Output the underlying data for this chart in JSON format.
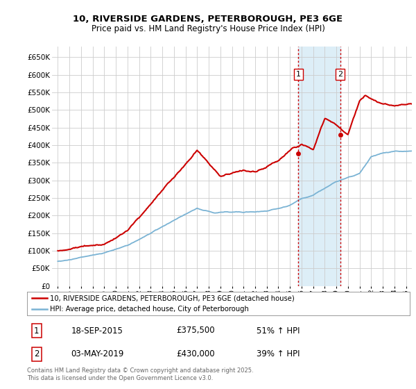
{
  "title_line1": "10, RIVERSIDE GARDENS, PETERBOROUGH, PE3 6GE",
  "title_line2": "Price paid vs. HM Land Registry's House Price Index (HPI)",
  "legend_label1": "10, RIVERSIDE GARDENS, PETERBOROUGH, PE3 6GE (detached house)",
  "legend_label2": "HPI: Average price, detached house, City of Peterborough",
  "transaction1_date": "18-SEP-2015",
  "transaction1_price": "£375,500",
  "transaction1_hpi": "51% ↑ HPI",
  "transaction2_date": "03-MAY-2019",
  "transaction2_price": "£430,000",
  "transaction2_hpi": "39% ↑ HPI",
  "footnote": "Contains HM Land Registry data © Crown copyright and database right 2025.\nThis data is licensed under the Open Government Licence v3.0.",
  "vline1_x": 2015.72,
  "vline2_x": 2019.33,
  "marker1_x": 2015.72,
  "marker1_y": 375500,
  "marker2_x": 2019.33,
  "marker2_y": 430000,
  "hpi_color": "#7ab3d4",
  "price_color": "#cc0000",
  "vline_color": "#cc0000",
  "span_color": "#ddeef7",
  "background_color": "#ffffff",
  "grid_color": "#cccccc",
  "ylim": [
    0,
    680000
  ],
  "xlim": [
    1994.5,
    2025.5
  ],
  "yticks": [
    0,
    50000,
    100000,
    150000,
    200000,
    250000,
    300000,
    350000,
    400000,
    450000,
    500000,
    550000,
    600000,
    650000
  ]
}
